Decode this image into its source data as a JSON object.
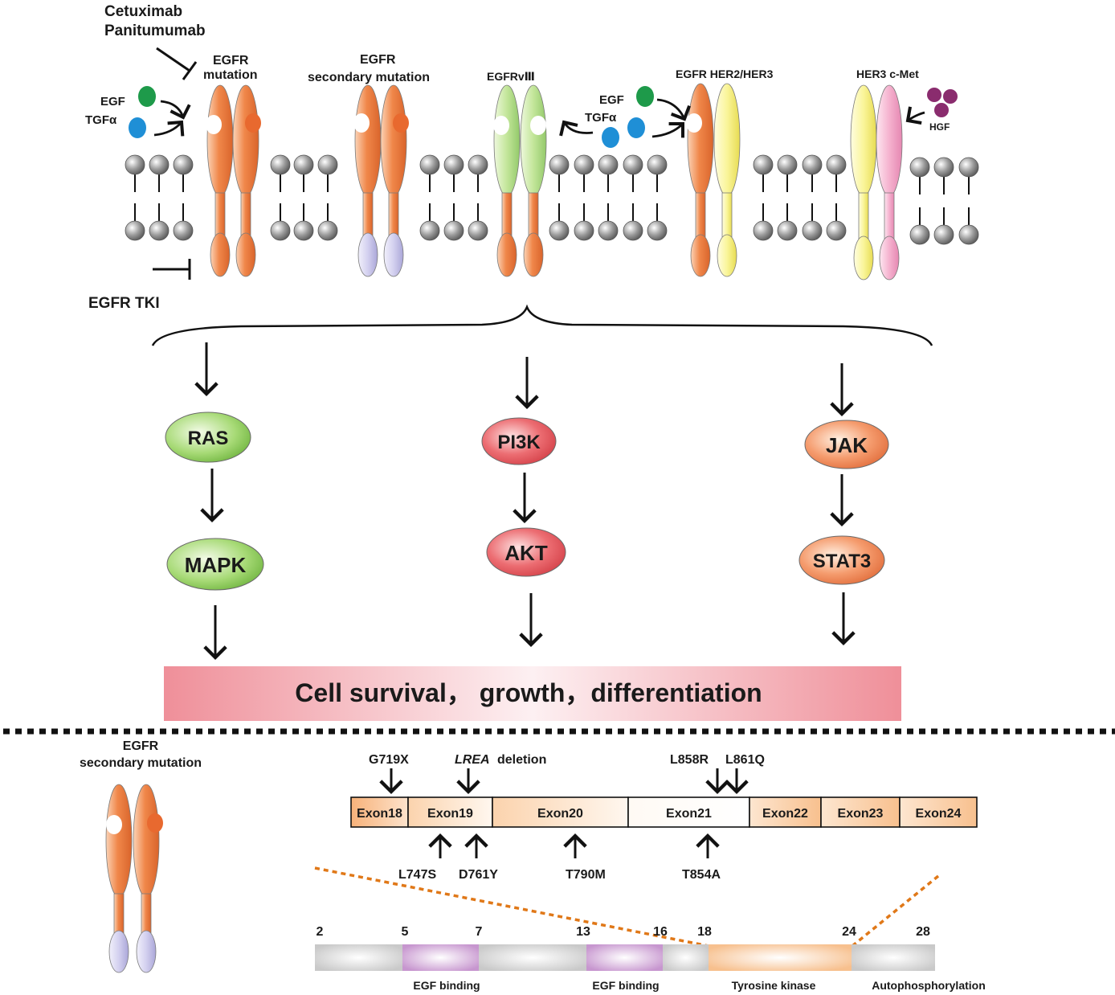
{
  "drugs": {
    "antibody_line1": "Cetuximab",
    "antibody_line2": "Panitumumab",
    "tki": "EGFR TKI"
  },
  "ligands": {
    "egf": "EGF",
    "tgf_a": "TGFα",
    "egf2": "EGF",
    "tgf_a2": "TGFα",
    "hgf": "HGF"
  },
  "receptors": {
    "egfr_mut_line1": "EGFR",
    "egfr_mut_line2": "mutation",
    "egfr_sec_line1": "EGFR",
    "egfr_sec_line2": "secondary mutation",
    "egfrviii": "EGFRvⅢ",
    "egfr_her": "EGFR  HER2/HER3",
    "her3_cmet": "HER3 c-Met"
  },
  "pathways": {
    "ras": "RAS",
    "mapk": "MAPK",
    "pi3k": "PI3K",
    "akt": "AKT",
    "jak": "JAK",
    "stat3": "STAT3"
  },
  "outcome": "Cell survival， growth，differentiation",
  "lower": {
    "inset_line1": "EGFR",
    "inset_line2": "secondary mutation"
  },
  "exons": [
    "Exon18",
    "Exon19",
    "Exon20",
    "Exon21",
    "Exon22",
    "Exon23",
    "Exon24"
  ],
  "mutations_top": {
    "g719x": "G719X",
    "lrea_italic": "LREA",
    "lrea_rest": "deletion",
    "l858r": "L858R",
    "l861q": "L861Q"
  },
  "mutations_bottom": [
    "L747S",
    "D761Y",
    "T790M",
    "T854A"
  ],
  "domain_numbers": [
    "2",
    "5",
    "7",
    "13",
    "16",
    "18",
    "24",
    "28"
  ],
  "domains": [
    "EGF binding",
    "EGF binding",
    "Tyrosine kinase",
    "Autophosphorylation"
  ],
  "colors": {
    "orange_receptor": "#f0874a",
    "green_receptor": "#b8e08a",
    "yellow_receptor": "#f6f07a",
    "pink_receptor": "#f3a8c8",
    "lavender_tail": "#c9c6ea",
    "egf_green": "#1e9a4a",
    "tgf_blue": "#1f8fd6",
    "hgf_purple": "#8a2c6e",
    "outcome_pink": "#ef8f99",
    "dotted_orange": "#e07818"
  }
}
